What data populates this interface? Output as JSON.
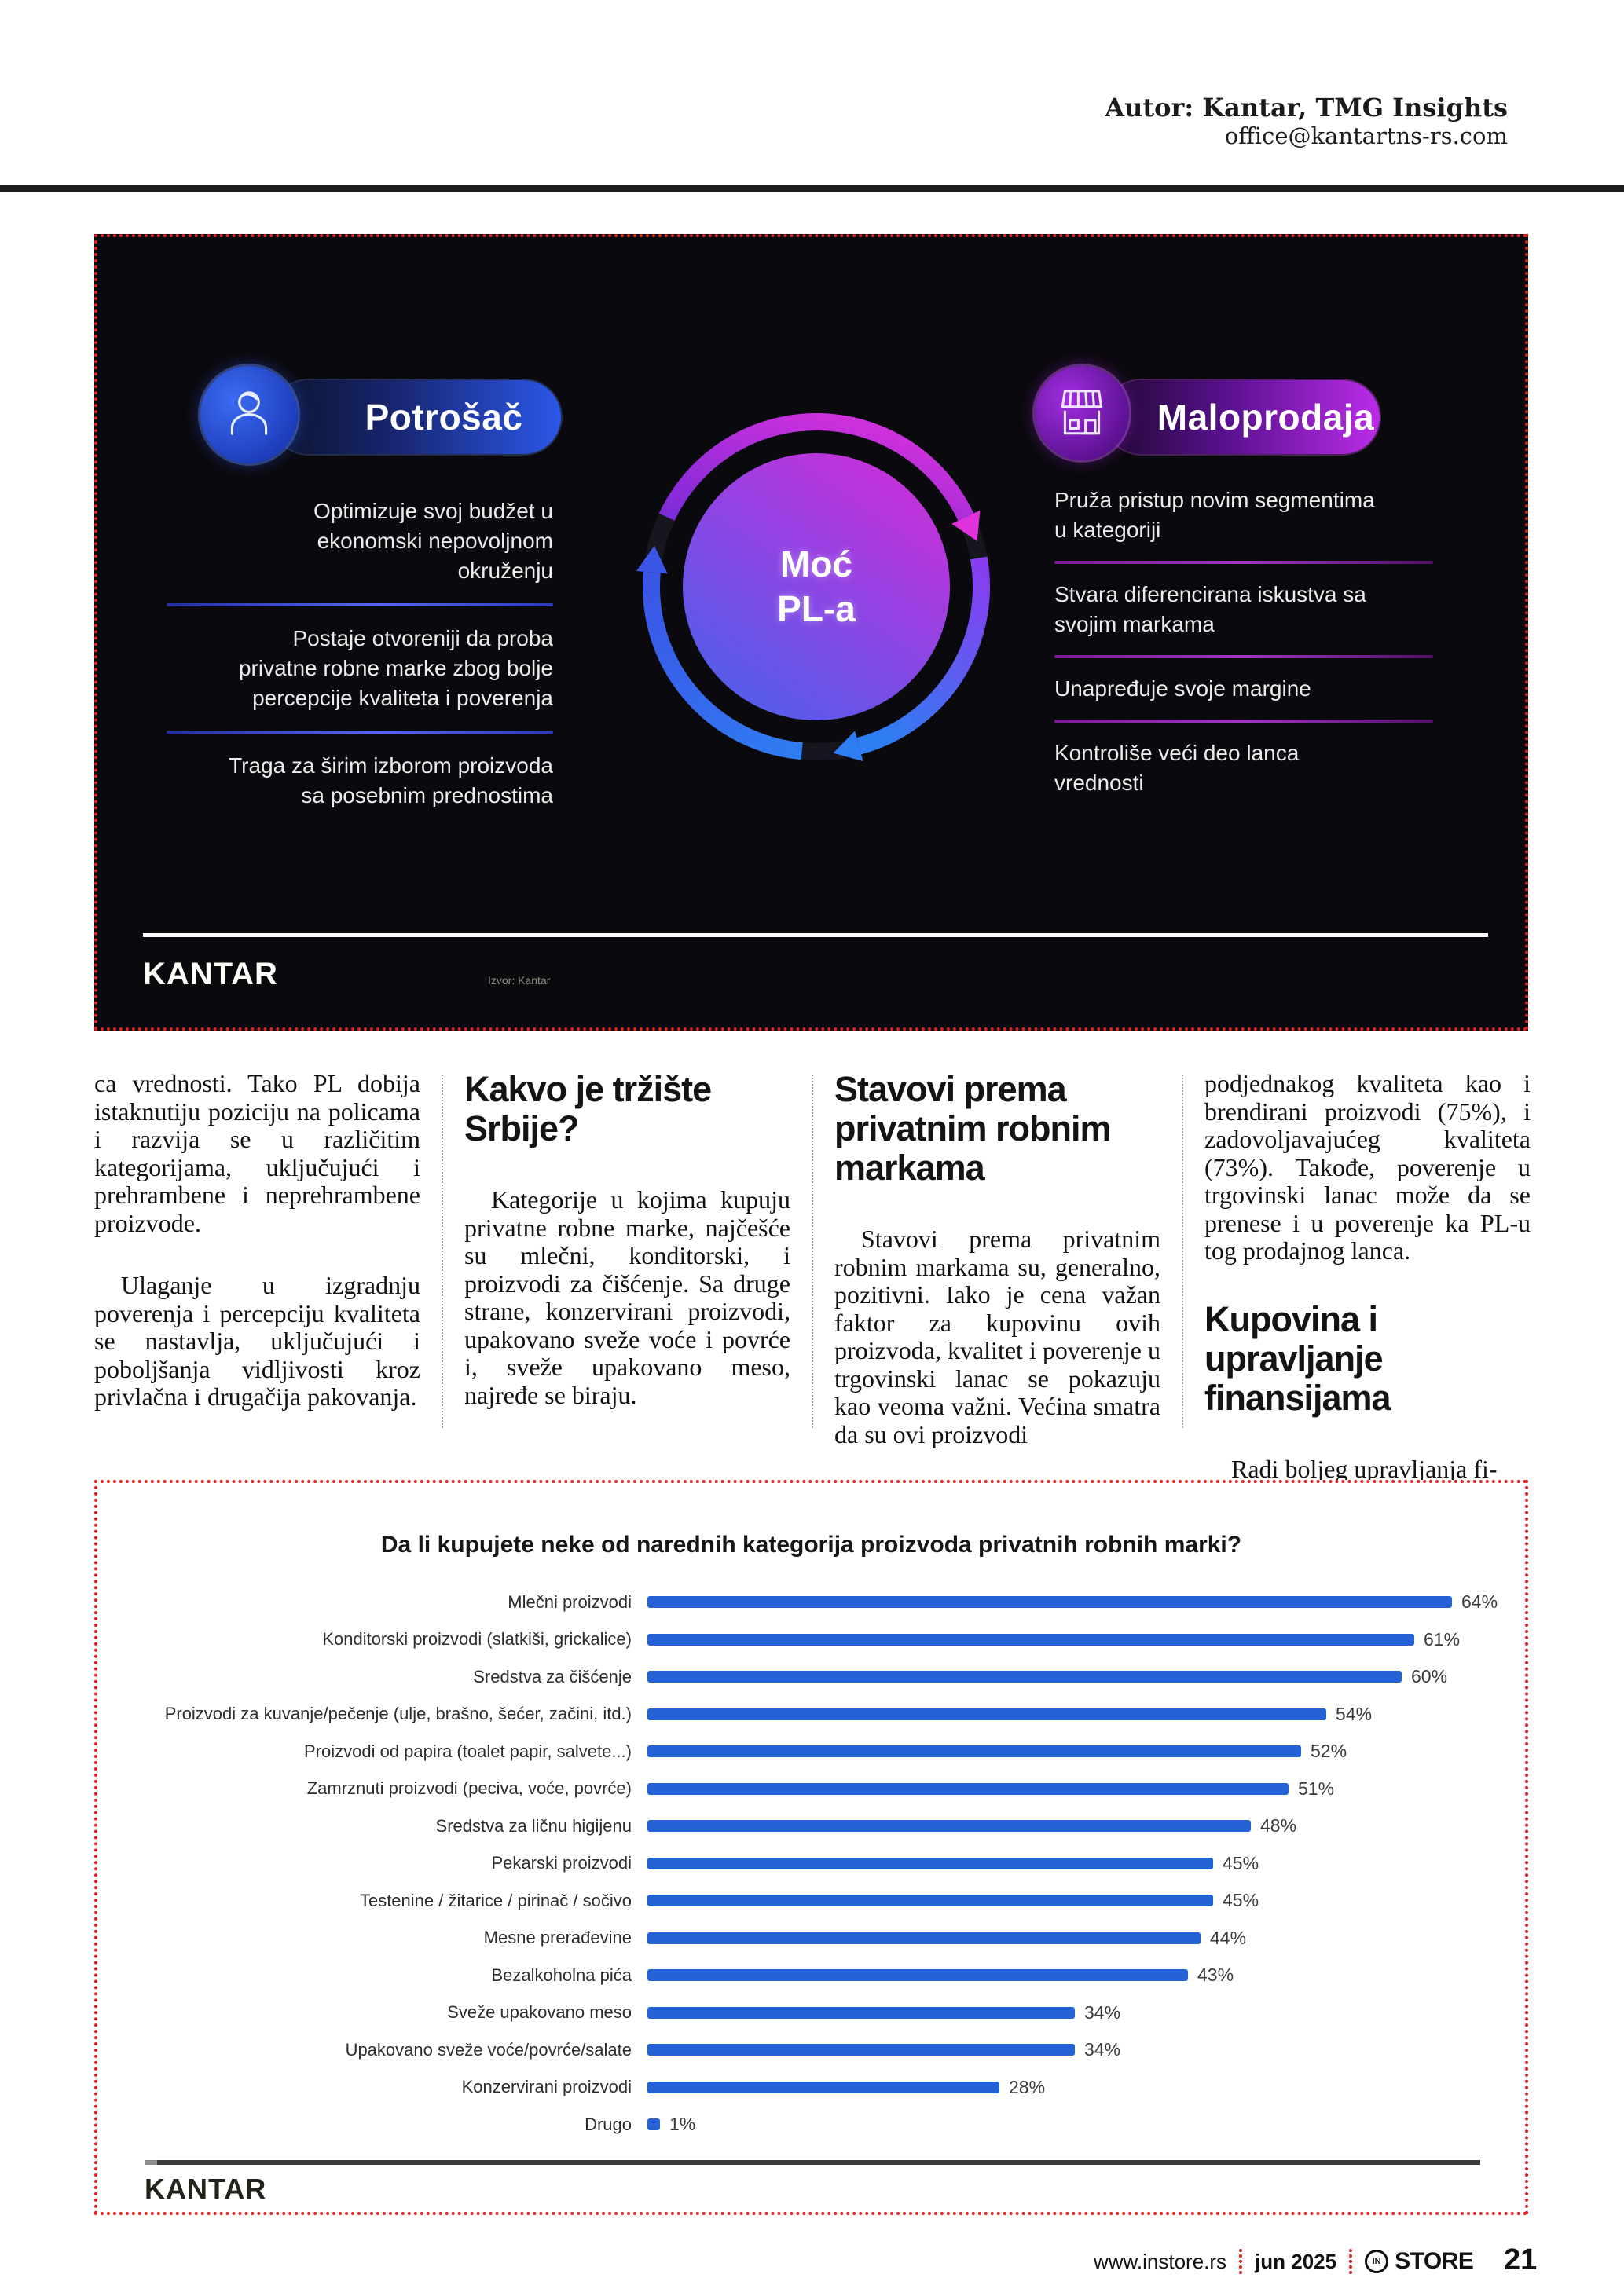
{
  "header": {
    "author": "Autor: Kantar, TMG Insights",
    "email": "office@kantartns-rs.com"
  },
  "infographic": {
    "logo": "KANTAR",
    "source_note": "Izvor: Kantar",
    "center": {
      "line1": "Moć",
      "line2": "PL-a"
    },
    "consumer": {
      "label": "Potrošač",
      "icon": "person-icon",
      "items": [
        "Optimizuje svoj budžet u ekonomski nepovoljnom okruženju",
        "Postaje otvoreniji da proba privatne robne marke zbog bolje percepcije kvaliteta i poverenja",
        "Traga za širim izborom proizvoda sa posebnim prednostima"
      ]
    },
    "retail": {
      "label": "Maloprodaja",
      "icon": "store-icon",
      "items": [
        "Pruža pristup novim segmentima u kategoriji",
        "Stvara diferencirana iskustva sa svojim markama",
        "Unapređuje svoje margine",
        "Kontroliše veći deo lanca vrednosti"
      ]
    },
    "colors": {
      "consumer_accent": "#2b57e8",
      "retail_accent": "#bb2ce8",
      "circle_gradient_top": "#cf2ed9",
      "circle_gradient_bottom": "#4a60ea"
    }
  },
  "article": {
    "columns": [
      {
        "blocks": [
          {
            "type": "p",
            "indent": false,
            "text": "ca vrednosti. Tako PL dobija istaknutiju poziciju na policama i razvija se u različitim kategorijama, uključujući i prehrambene i neprehrambene proizvode."
          },
          {
            "type": "p",
            "indent": true,
            "text": "Ulaganje u izgradnju poverenja i percepciju kvaliteta se nastavlja, uključujući i poboljšanja vidljivosti kroz privlačna i drugačija pakovanja."
          }
        ]
      },
      {
        "blocks": [
          {
            "type": "h",
            "text": "Kakvo je tržište Srbije?"
          },
          {
            "type": "p",
            "indent": true,
            "text": "Kategorije u kojima kupuju privatne robne marke, najčešće su mlečni, konditorski, i proizvodi za čišćenje. Sa druge strane, konzervirani proizvodi, upakovano sveže voće i povrće i, sveže upakovano meso, najređe se biraju."
          }
        ]
      },
      {
        "blocks": [
          {
            "type": "h",
            "text": "Stavovi prema privatnim robnim markama"
          },
          {
            "type": "p",
            "indent": true,
            "text": "Stavovi prema privatnim robnim markama su, generalno, pozitivni. Iako je cena važan faktor za kupovinu ovih proizvoda, kvalitet i poverenje u trgovinski lanac se pokazuju kao veoma važni. Većina smatra da su ovi proizvodi"
          }
        ]
      },
      {
        "blocks": [
          {
            "type": "p",
            "indent": false,
            "text": "podjednakog kvaliteta kao i brendirani proizvodi (75%), i zadovoljavajućeg kvaliteta (73%). Takođe, poverenje u trgovinski lanac može da se prenese i u poverenje ka PL-u tog prodajnog lanca."
          },
          {
            "type": "h",
            "text": "Kupovina i upravljanje finansijama"
          },
          {
            "type": "p",
            "indent": true,
            "text": "Radi boljeg upravljanja fi-"
          }
        ]
      }
    ]
  },
  "chart_data": {
    "type": "bar",
    "orientation": "horizontal",
    "title": "Da li kupujete neke od narednih kategorija proizvoda  privatnih robnih marki?",
    "categories": [
      "Mlečni proizvodi",
      "Konditorski proizvodi (slatkiši, grickalice)",
      "Sredstva za čišćenje",
      "Proizvodi za kuvanje/pečenje (ulje, brašno, šećer, začini, itd.)",
      "Proizvodi od papira (toalet papir, salvete...)",
      "Zamrznuti proizvodi (peciva, voće, povrće)",
      "Sredstva za ličnu higijenu",
      "Pekarski proizvodi",
      "Testenine / žitarice / pirinač / sočivo",
      "Mesne prerađevine",
      "Bezalkoholna pića",
      "Sveže upakovano meso",
      "Upakovano sveže voće/povrće/salate",
      "Konzervirani proizvodi",
      "Drugo"
    ],
    "values": [
      64,
      61,
      60,
      54,
      52,
      51,
      48,
      45,
      45,
      44,
      43,
      34,
      34,
      28,
      1
    ],
    "value_suffix": "%",
    "bar_color": "#2463d6",
    "xlim": [
      0,
      70
    ],
    "grid": false,
    "legend": "none",
    "source_logo": "KANTAR"
  },
  "footer": {
    "site": "www.instore.rs",
    "issue": "jun 2025",
    "brand_mark": "IN",
    "brand_name": "STORE",
    "page_number": "21"
  }
}
